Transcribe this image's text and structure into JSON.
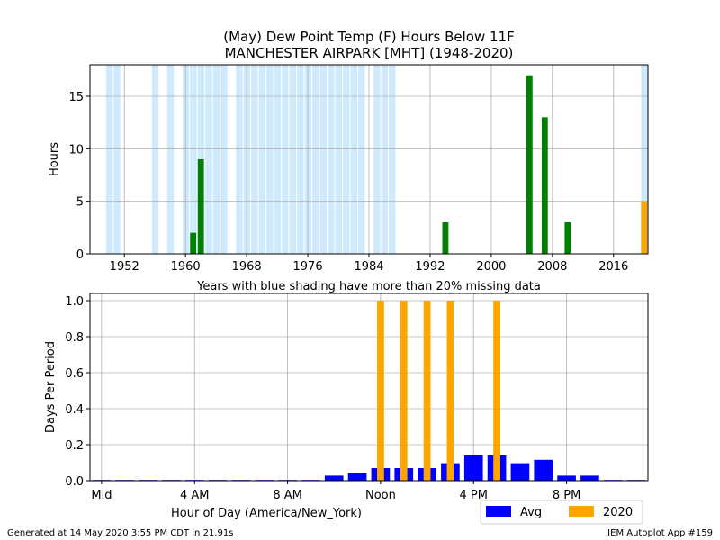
{
  "title_line1": "(May) Dew Point Temp (F) Hours Below 11F",
  "title_line2": "MANCHESTER AIRPARK [MHT] (1948-2020)",
  "footer_left": "Generated at 14 May 2020 3:55 PM CDT in 21.91s",
  "footer_right": "IEM Autoplot App #159",
  "colors": {
    "history": "#008000",
    "current": "#ffa500",
    "avg": "#0000ff",
    "missing": "#cfeafd",
    "grid": "#b0b0b0"
  },
  "chart_data": [
    {
      "type": "bar",
      "ylabel": "Hours",
      "xlabel": "",
      "xlim": [
        1947.5,
        2020.5
      ],
      "ylim": [
        0,
        18
      ],
      "xticks": [
        1952,
        1960,
        1968,
        1976,
        1984,
        1992,
        2000,
        2008,
        2016
      ],
      "yticks": [
        0,
        5,
        10,
        15
      ],
      "grid": true,
      "note": "Years with blue shading have more than 20% missing data",
      "missing_years": [
        1950,
        1951,
        1956,
        1958,
        1960,
        1961,
        1962,
        1963,
        1964,
        1965,
        1967,
        1968,
        1969,
        1970,
        1971,
        1972,
        1973,
        1974,
        1975,
        1976,
        1977,
        1978,
        1979,
        1980,
        1981,
        1982,
        1983,
        1985,
        1986,
        1987,
        2020
      ],
      "series": [
        {
          "x": [
            1961,
            1962,
            1994,
            2005,
            2007,
            2010
          ],
          "values": [
            2,
            9,
            3,
            17,
            13,
            3
          ]
        },
        {
          "x": [
            2020
          ],
          "values": [
            5
          ]
        }
      ]
    },
    {
      "type": "bar",
      "ylabel": "Days Per Period",
      "xlabel": "Hour of Day (America/New_York)",
      "xlim": [
        -0.5,
        23.5
      ],
      "ylim": [
        0,
        1.04
      ],
      "xticks": [
        0,
        4,
        8,
        12,
        16,
        20
      ],
      "xticklabels": [
        "Mid",
        "4 AM",
        "8 AM",
        "Noon",
        "4 PM",
        "8 PM"
      ],
      "yticks": [
        0.0,
        0.2,
        0.4,
        0.6,
        0.8,
        1.0
      ],
      "yticklabels": [
        "0.0",
        "0.2",
        "0.4",
        "0.6",
        "0.8",
        "1.0"
      ],
      "grid": true,
      "legend_position": "bottom-right",
      "series": [
        {
          "name": "Avg",
          "x": [
            0,
            1,
            2,
            3,
            4,
            5,
            6,
            7,
            8,
            9,
            10,
            11,
            12,
            13,
            14,
            15,
            16,
            17,
            18,
            19,
            20,
            21,
            22,
            23
          ],
          "values": [
            0,
            0,
            0,
            0,
            0,
            0,
            0,
            0,
            0,
            0,
            0.028,
            0.042,
            0.07,
            0.07,
            0.07,
            0.097,
            0.14,
            0.14,
            0.097,
            0.116,
            0.028,
            0.028,
            0,
            0
          ]
        },
        {
          "name": "2020",
          "x": [
            12,
            13,
            14,
            15,
            17
          ],
          "values": [
            1,
            1,
            1,
            1,
            1
          ]
        }
      ]
    }
  ]
}
